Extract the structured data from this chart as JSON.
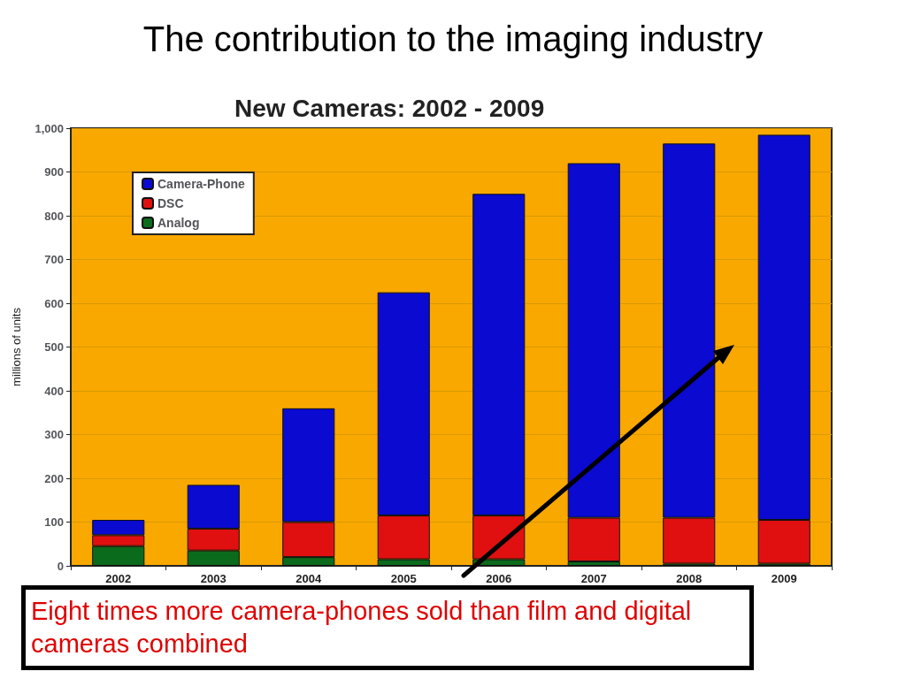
{
  "chart_data": {
    "type": "bar",
    "stacked": true,
    "title": "The contribution to the imaging industry",
    "subtitle": "New Cameras: 2002 - 2009",
    "ylabel": "millions of units",
    "categories": [
      "2002",
      "2003",
      "2004",
      "2005",
      "2006",
      "2007",
      "2008",
      "2009"
    ],
    "series": [
      {
        "name": "Analog",
        "color": "#0b6b1c",
        "values": [
          45,
          35,
          20,
          15,
          15,
          10,
          5,
          5
        ]
      },
      {
        "name": "DSC",
        "color": "#e01010",
        "values": [
          25,
          50,
          80,
          100,
          100,
          100,
          105,
          100
        ]
      },
      {
        "name": "Camera-Phone",
        "color": "#0a0ad0",
        "values": [
          35,
          100,
          260,
          510,
          735,
          810,
          855,
          880
        ]
      }
    ],
    "ylim": [
      0,
      1000
    ],
    "yticks": [
      0,
      100,
      200,
      300,
      400,
      500,
      600,
      700,
      800,
      900,
      {
        "value": 1000,
        "label": "1,000"
      }
    ],
    "grid": "y",
    "legend": "top left",
    "annotations": [
      "Eight times more camera-phones sold than film and digital cameras combined"
    ]
  }
}
